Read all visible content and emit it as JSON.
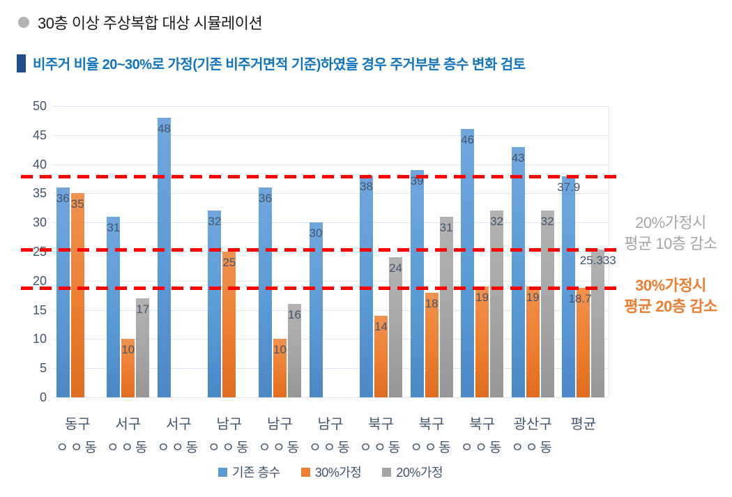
{
  "header": {
    "bullet_title": "30층 이상 주상복합 대상 시뮬레이션",
    "section_title": "비주거 비율 20~30%로 가정(기존 비주거면적 기준)하였을 경우 주거부분 층수 변화 검토"
  },
  "colors": {
    "series_blue": "#5B9BD5",
    "series_orange": "#ED7D31",
    "series_gray": "#A5A5A5",
    "grid": "#DCE4F1",
    "axis_text": "#44546A",
    "reference_line": "#FF0000",
    "section_title_text": "#1173BD",
    "section_title_bullet": "#1F4E8C",
    "header_bullet": "#B3B3B3",
    "annotation_gray": "#A6A6A6",
    "annotation_orange": "#ED7D31"
  },
  "chart_data": {
    "type": "bar",
    "title": "",
    "xlabel": "",
    "ylabel": "",
    "ylim": [
      0,
      50
    ],
    "ytick_step": 5,
    "grid": true,
    "legend_position": "bottom",
    "categories": [
      "동구",
      "서구",
      "서구",
      "남구",
      "남구",
      "남구",
      "북구",
      "북구",
      "북구",
      "광산구",
      "평균"
    ],
    "category_sublabels": [
      "ㅇㅇ동",
      "ㅇㅇ동",
      "ㅇㅇ동",
      "ㅇㅇ동",
      "ㅇㅇ동",
      "ㅇㅇ동",
      "ㅇㅇ동",
      "ㅇㅇ동",
      "ㅇㅇ동",
      "ㅇㅇ동",
      ""
    ],
    "series": [
      {
        "name": "기존 층수",
        "color": "#5B9BD5",
        "values": [
          36,
          31,
          48,
          32,
          36,
          30,
          38,
          39,
          46,
          43,
          37.9
        ]
      },
      {
        "name": "30%가정",
        "color": "#ED7D31",
        "values": [
          35,
          10,
          null,
          25,
          10,
          null,
          14,
          18,
          19,
          19,
          18.75
        ]
      },
      {
        "name": "20%가정",
        "color": "#A5A5A5",
        "values": [
          null,
          17,
          null,
          null,
          16,
          null,
          24,
          31,
          32,
          32,
          25.333
        ]
      }
    ],
    "reference_lines": [
      {
        "value": 37.9,
        "style": "dashed",
        "color": "#FF0000"
      },
      {
        "value": 25.333,
        "style": "dashed",
        "color": "#FF0000"
      },
      {
        "value": 18.75,
        "style": "dashed",
        "color": "#FF0000"
      }
    ],
    "annotations": [
      {
        "lines": [
          "20%가정시",
          "평균 10층 감소"
        ],
        "color": "#A6A6A6"
      },
      {
        "lines": [
          "30%가정시",
          "평균 20층 감소"
        ],
        "color": "#ED7D31"
      }
    ]
  }
}
